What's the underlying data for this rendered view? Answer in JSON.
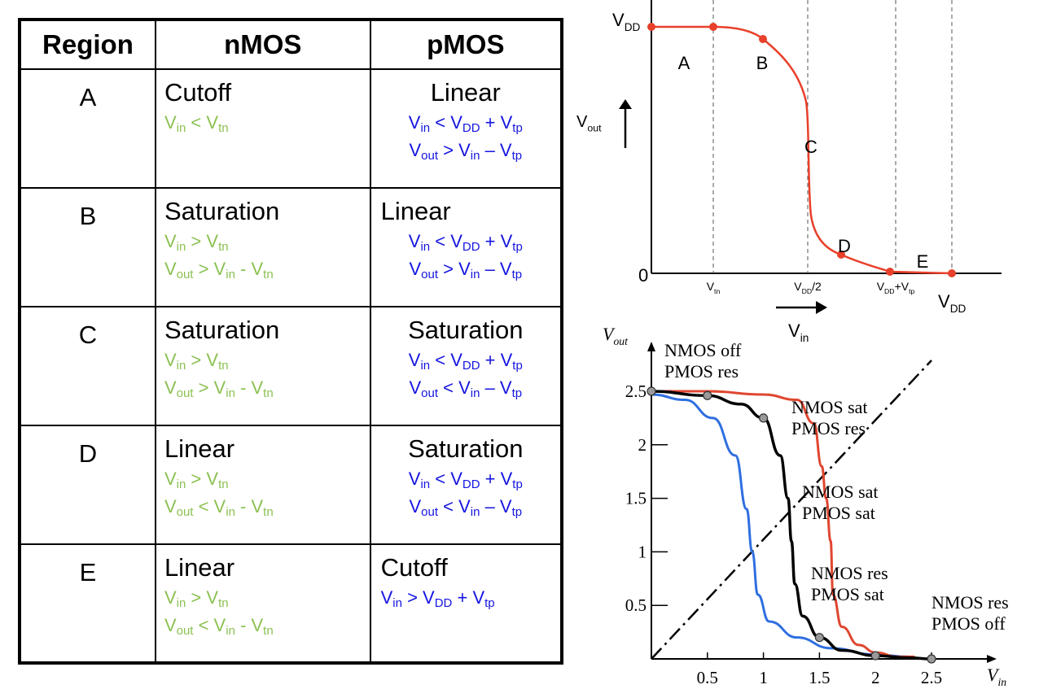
{
  "table": {
    "headers": [
      "Region",
      "nMOS",
      "pMOS"
    ],
    "rows": [
      {
        "region": "A",
        "nmos": "Cutoff",
        "nmos_conditions": [
          [
            [
              "V",
              "in"
            ],
            [
              " < V",
              "tn"
            ]
          ]
        ],
        "pmos": "Linear",
        "pmos_align": "center",
        "pmos_conditions": [
          [
            [
              "V",
              "in"
            ],
            [
              " < V",
              "DD"
            ],
            [
              " + V",
              "tp"
            ]
          ],
          [
            [
              "V",
              "out"
            ],
            [
              " > V",
              "in"
            ],
            [
              " – V",
              "tp"
            ]
          ]
        ]
      },
      {
        "region": "B",
        "nmos": "Saturation",
        "nmos_conditions": [
          [
            [
              "V",
              "in"
            ],
            [
              " > V",
              "tn"
            ]
          ],
          [
            [
              "V",
              "out"
            ],
            [
              " > V",
              "in"
            ],
            [
              " - V",
              "tn"
            ]
          ]
        ],
        "pmos": "Linear",
        "pmos_align": "left",
        "pmos_conditions": [
          [
            [
              "V",
              "in"
            ],
            [
              " < V",
              "DD"
            ],
            [
              " + V",
              "tp"
            ]
          ],
          [
            [
              "V",
              "out"
            ],
            [
              " > V",
              "in"
            ],
            [
              " – V",
              "tp"
            ]
          ]
        ]
      },
      {
        "region": "C",
        "nmos": "Saturation",
        "nmos_conditions": [
          [
            [
              "V",
              "in"
            ],
            [
              " > V",
              "tn"
            ]
          ],
          [
            [
              "V",
              "out"
            ],
            [
              " > V",
              "in"
            ],
            [
              " - V",
              "tn"
            ]
          ]
        ],
        "pmos": "Saturation",
        "pmos_align": "center",
        "pmos_conditions": [
          [
            [
              "V",
              "in"
            ],
            [
              " < V",
              "DD"
            ],
            [
              " + V",
              "tp"
            ]
          ],
          [
            [
              "V",
              "out"
            ],
            [
              " < V",
              "in"
            ],
            [
              " – V",
              "tp"
            ]
          ]
        ]
      },
      {
        "region": "D",
        "nmos": "Linear",
        "nmos_conditions": [
          [
            [
              "V",
              "in"
            ],
            [
              " > V",
              "tn"
            ]
          ],
          [
            [
              "V",
              "out"
            ],
            [
              " < V",
              "in"
            ],
            [
              " - V",
              "tn"
            ]
          ]
        ],
        "pmos": "Saturation",
        "pmos_align": "center",
        "pmos_conditions": [
          [
            [
              "V",
              "in"
            ],
            [
              " < V",
              "DD"
            ],
            [
              " + V",
              "tp"
            ]
          ],
          [
            [
              "V",
              "out"
            ],
            [
              " < V",
              "in"
            ],
            [
              " – V",
              "tp"
            ]
          ]
        ]
      },
      {
        "region": "E",
        "nmos": "Linear",
        "nmos_conditions": [
          [
            [
              "V",
              "in"
            ],
            [
              " > V",
              "tn"
            ]
          ],
          [
            [
              "V",
              "out"
            ],
            [
              " < V",
              "in"
            ],
            [
              " - V",
              "tn"
            ]
          ]
        ],
        "pmos": "Cutoff",
        "pmos_align": "left",
        "pmos_conditions": [
          [
            [
              "V",
              "in"
            ],
            [
              " > V",
              "DD"
            ],
            [
              " + V",
              "tp"
            ]
          ]
        ]
      }
    ]
  },
  "top_diagram": {
    "y_top_label": [
      "V",
      "DD"
    ],
    "y_zero_label": "0",
    "y_axis_label": [
      "V",
      "out"
    ],
    "x_axis_label": [
      "V",
      "in"
    ],
    "tick_labels": [
      [
        "V",
        "tn"
      ],
      [
        "V",
        "DD",
        "/2"
      ],
      [
        "V",
        "DD",
        "+V",
        "tp"
      ],
      [
        "V",
        "DD"
      ]
    ],
    "region_labels": [
      "A",
      "B",
      "C",
      "D",
      "E"
    ],
    "colors": {
      "curve": "#e8402a",
      "axis": "#000000"
    }
  },
  "bottom_chart": {
    "y_axis_label": [
      "V",
      "out"
    ],
    "x_axis_label": [
      "V",
      "in"
    ],
    "x_ticks": [
      "0.5",
      "1",
      "1.5",
      "2",
      "2.5"
    ],
    "y_ticks": [
      "0.5",
      "1",
      "1.5",
      "2",
      "2.5"
    ],
    "annotations": [
      [
        "NMOS off",
        "PMOS res"
      ],
      [
        "NMOS sat",
        "PMOS res"
      ],
      [
        "NMOS sat",
        "PMOS sat"
      ],
      [
        "NMOS res",
        "PMOS sat"
      ],
      [
        "NMOS res",
        "PMOS off"
      ]
    ],
    "colors": {
      "black_curve": "#000000",
      "red_curve": "#e0462f",
      "blue_curve": "#2f6fe0",
      "marker": "#999999"
    },
    "chart_data": {
      "type": "line",
      "xlim": [
        0,
        2.5
      ],
      "ylim": [
        0,
        2.5
      ],
      "series": [
        {
          "values": [
            [
              0,
              2.5
            ],
            [
              0.5,
              2.46
            ],
            [
              0.8,
              2.38
            ],
            [
              1.0,
              2.25
            ],
            [
              1.15,
              1.9
            ],
            [
              1.22,
              1.5
            ],
            [
              1.25,
              1.1
            ],
            [
              1.28,
              0.7
            ],
            [
              1.35,
              0.4
            ],
            [
              1.5,
              0.2
            ],
            [
              1.7,
              0.08
            ],
            [
              2.0,
              0.03
            ],
            [
              2.3,
              0.01
            ],
            [
              2.5,
              0
            ]
          ]
        },
        {
          "values": [
            [
              0,
              2.5
            ],
            [
              0.5,
              2.5
            ],
            [
              1.0,
              2.47
            ],
            [
              1.3,
              2.42
            ],
            [
              1.45,
              2.2
            ],
            [
              1.52,
              1.8
            ],
            [
              1.56,
              1.5
            ],
            [
              1.6,
              1.1
            ],
            [
              1.62,
              0.6
            ],
            [
              1.7,
              0.3
            ],
            [
              1.85,
              0.13
            ],
            [
              2.0,
              0.06
            ],
            [
              2.2,
              0.02
            ],
            [
              2.35,
              0.02
            ]
          ]
        },
        {
          "values": [
            [
              0,
              2.47
            ],
            [
              0.3,
              2.42
            ],
            [
              0.55,
              2.25
            ],
            [
              0.75,
              1.9
            ],
            [
              0.85,
              1.4
            ],
            [
              0.9,
              1.0
            ],
            [
              0.95,
              0.6
            ],
            [
              1.05,
              0.35
            ],
            [
              1.3,
              0.2
            ],
            [
              1.6,
              0.1
            ],
            [
              2.0,
              0.04
            ],
            [
              2.3,
              0.02
            ]
          ]
        },
        {
          "values": [
            [
              0,
              0
            ],
            [
              2.5,
              2.5
            ]
          ]
        }
      ]
    }
  }
}
